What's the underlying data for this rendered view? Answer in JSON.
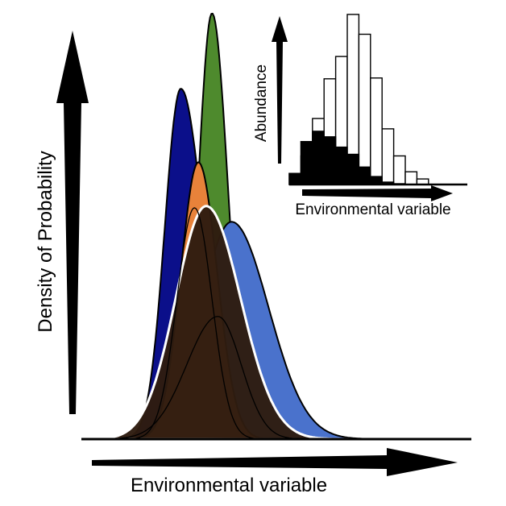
{
  "chart_data": [
    {
      "type": "area",
      "title": "",
      "xlabel": "Environmental variable",
      "ylabel": "Density of Probability",
      "grid": false,
      "axis_style": "arrows",
      "xlim": [
        0,
        1
      ],
      "ylim": [
        0,
        1
      ],
      "series": [
        {
          "name": "dark blue",
          "color": "#0b0f8a",
          "peak_x": 0.255,
          "peak_y": 1.0,
          "sd_left": 0.041,
          "sd_right": 0.058
        },
        {
          "name": "green",
          "color": "#4e8a2d",
          "peak_x": 0.335,
          "peak_y": 1.215,
          "sd_left": 0.035,
          "sd_right": 0.04
        },
        {
          "name": "light blue",
          "color": "#4a72cc",
          "peak_x": 0.385,
          "peak_y": 0.62,
          "sd_left": 0.08,
          "sd_right": 0.095
        },
        {
          "name": "orange",
          "color": "#e8823a",
          "peak_x": 0.3,
          "peak_y": 0.79,
          "sd_left": 0.045,
          "sd_right": 0.048
        },
        {
          "name": "community",
          "color": "#2e1c0f",
          "peak_x": 0.32,
          "peak_y": 0.665,
          "sd_left": 0.078,
          "sd_right": 0.088
        },
        {
          "name": "species curve A",
          "color": "none",
          "peak_x": 0.29,
          "peak_y": 0.66,
          "sd_left": 0.045,
          "sd_right": 0.045
        },
        {
          "name": "species curve B",
          "color": "none",
          "peak_x": 0.35,
          "peak_y": 0.35,
          "sd_left": 0.08,
          "sd_right": 0.06
        }
      ]
    },
    {
      "type": "bar",
      "title": "",
      "xlabel": "Environmental variable",
      "ylabel": "Abundance",
      "grid": false,
      "ylim": [
        0,
        225
      ],
      "series": [
        {
          "name": "total",
          "color": "#ffffff",
          "values": [
            14,
            36,
            83,
            133,
            161,
            214,
            189,
            134,
            70,
            36,
            16,
            7
          ]
        },
        {
          "name": "subset",
          "color": "#000000",
          "values": [
            14,
            54,
            67,
            60,
            47,
            38,
            22,
            10,
            3,
            1,
            0,
            0
          ]
        }
      ]
    }
  ]
}
